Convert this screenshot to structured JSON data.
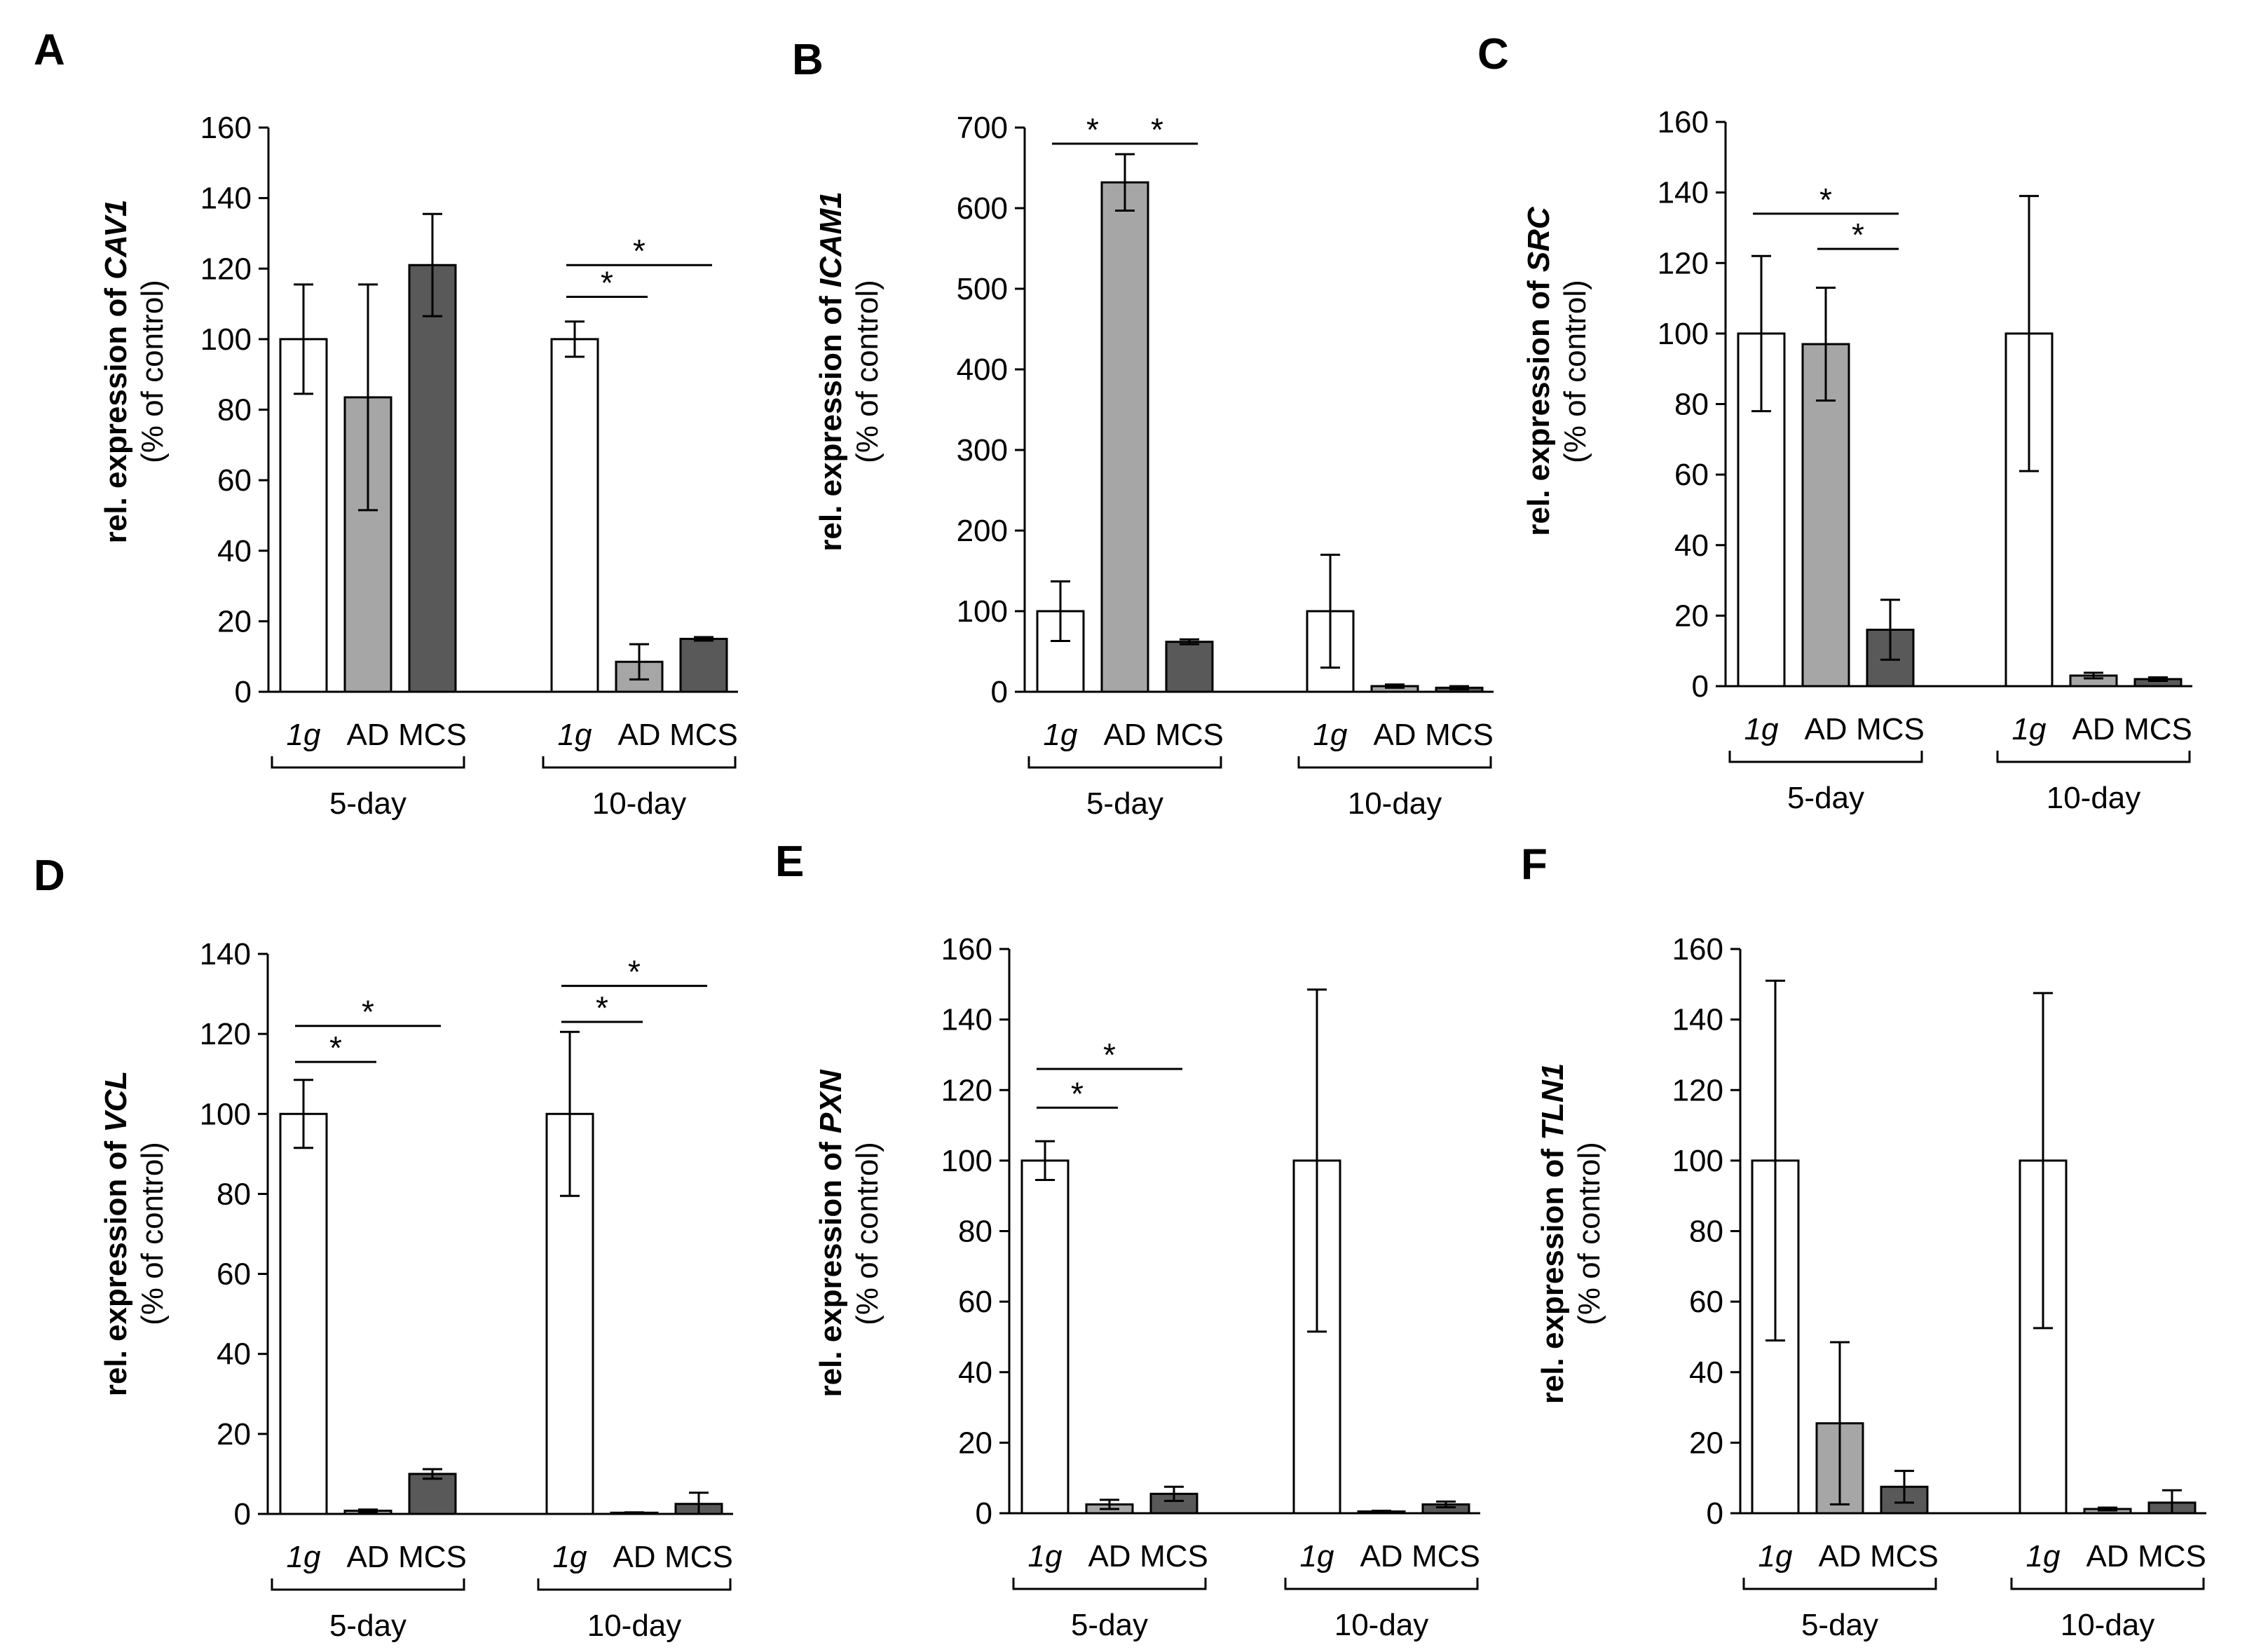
{
  "figure": {
    "y_label_prefix": "rel. expression of ",
    "y_label_suffix": "(% of control)",
    "groups": [
      "5-day",
      "10-day"
    ],
    "conditions": [
      "1g",
      "AD",
      "MCS"
    ],
    "condition_italic": [
      true,
      false,
      false
    ],
    "colors": [
      "#ffffff",
      "#a6a6a6",
      "#595959"
    ],
    "significance_mark": "*"
  },
  "chart_data": [
    {
      "panel": "A",
      "type": "bar",
      "gene": "CAV1",
      "ylim": [
        0,
        160
      ],
      "yticks": [
        0,
        20,
        40,
        60,
        80,
        100,
        120,
        140,
        160
      ],
      "values": [
        [
          100,
          83.5,
          121
        ],
        [
          100,
          8.5,
          15
        ]
      ],
      "errors": [
        [
          15.5,
          32,
          14.5
        ],
        [
          5,
          5,
          0.5
        ]
      ],
      "significance": [
        {
          "group": 1,
          "from": 0,
          "to": 1,
          "y": 112
        },
        {
          "group": 1,
          "from": 0,
          "to": 2,
          "y": 121
        }
      ]
    },
    {
      "panel": "B",
      "type": "bar",
      "gene": "ICAM1",
      "ylim": [
        0,
        700
      ],
      "yticks": [
        0,
        100,
        200,
        300,
        400,
        500,
        600,
        700
      ],
      "values": [
        [
          100,
          632,
          62
        ],
        [
          100,
          7,
          5
        ]
      ],
      "errors": [
        [
          37,
          35,
          3
        ],
        [
          70,
          2,
          2
        ]
      ],
      "significance": [
        {
          "group": 0,
          "from": 0,
          "to": 1,
          "y": 680
        },
        {
          "group": 0,
          "from": 1,
          "to": 2,
          "y": 680
        }
      ]
    },
    {
      "panel": "C",
      "type": "bar",
      "gene": "SRC",
      "ylim": [
        0,
        160
      ],
      "yticks": [
        0,
        20,
        40,
        60,
        80,
        100,
        120,
        140,
        160
      ],
      "values": [
        [
          100,
          97,
          16
        ],
        [
          100,
          3,
          2
        ]
      ],
      "errors": [
        [
          22,
          16,
          8.5
        ],
        [
          39,
          0.8,
          0.5
        ]
      ],
      "significance": [
        {
          "group": 0,
          "from": 0,
          "to": 2,
          "y": 134
        },
        {
          "group": 0,
          "from": 1,
          "to": 2,
          "y": 124
        }
      ]
    },
    {
      "panel": "D",
      "type": "bar",
      "gene": "VCL",
      "ylim": [
        0,
        140
      ],
      "yticks": [
        0,
        20,
        40,
        60,
        80,
        100,
        120,
        140
      ],
      "values": [
        [
          100,
          0.8,
          10
        ],
        [
          100,
          0.3,
          2.5
        ]
      ],
      "errors": [
        [
          8.5,
          0.3,
          1.2
        ],
        [
          20.5,
          0.1,
          2.8
        ]
      ],
      "significance": [
        {
          "group": 0,
          "from": 0,
          "to": 1,
          "y": 113
        },
        {
          "group": 0,
          "from": 0,
          "to": 2,
          "y": 122
        },
        {
          "group": 1,
          "from": 0,
          "to": 1,
          "y": 123
        },
        {
          "group": 1,
          "from": 0,
          "to": 2,
          "y": 132
        }
      ]
    },
    {
      "panel": "E",
      "type": "bar",
      "gene": "PXN",
      "ylim": [
        0,
        160
      ],
      "yticks": [
        0,
        20,
        40,
        60,
        80,
        100,
        120,
        140,
        160
      ],
      "values": [
        [
          100,
          2.5,
          5.5
        ],
        [
          100,
          0.5,
          2.5
        ]
      ],
      "errors": [
        [
          5.5,
          1.3,
          2
        ],
        [
          48.5,
          0.2,
          0.8
        ]
      ],
      "significance": [
        {
          "group": 0,
          "from": 0,
          "to": 1,
          "y": 115
        },
        {
          "group": 0,
          "from": 0,
          "to": 2,
          "y": 126
        }
      ]
    },
    {
      "panel": "F",
      "type": "bar",
      "gene": "TLN1",
      "ylim": [
        0,
        160
      ],
      "yticks": [
        0,
        20,
        40,
        60,
        80,
        100,
        120,
        140,
        160
      ],
      "values": [
        [
          100,
          25.5,
          7.5
        ],
        [
          100,
          1.2,
          3
        ]
      ],
      "errors": [
        [
          51,
          23,
          4.5
        ],
        [
          47.5,
          0.4,
          3.5
        ]
      ],
      "significance": []
    }
  ]
}
